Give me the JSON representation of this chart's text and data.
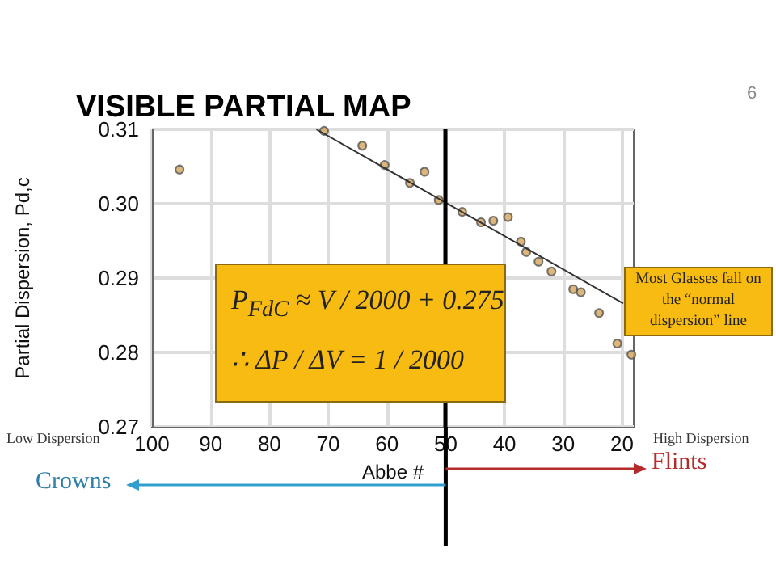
{
  "chart_data": {
    "type": "scatter",
    "title": "VISIBLE PARTIAL MAP",
    "xlabel": "Abbe #",
    "ylabel": "Partial Dispersion, Pd,c",
    "xlim": [
      100,
      18
    ],
    "xticks": [
      100,
      90,
      80,
      70,
      60,
      50,
      40,
      30,
      20
    ],
    "ylim": [
      0.27,
      0.31
    ],
    "yticks": [
      {
        "value": 0.27,
        "label": "0.27"
      },
      {
        "value": 0.28,
        "label": "0.28"
      },
      {
        "value": 0.29,
        "label": "0.29"
      },
      {
        "value": 0.3,
        "label": "0.30"
      },
      {
        "value": 0.31,
        "label": "0.31"
      }
    ],
    "grid": true,
    "series": [
      {
        "type": "scatter",
        "marker": "circle",
        "color": "#d4a45a",
        "x": [
          95.3,
          70.7,
          64.2,
          60.4,
          56.1,
          53.6,
          51.2,
          47.2,
          44.0,
          41.9,
          39.4,
          37.2,
          36.3,
          34.2,
          32.0,
          28.3,
          27.0,
          23.9,
          20.8,
          18.4
        ],
        "values": [
          0.3046,
          0.3098,
          0.3078,
          0.3052,
          0.3028,
          0.3043,
          0.3005,
          0.2989,
          0.2975,
          0.2977,
          0.2982,
          0.2949,
          0.2935,
          0.2922,
          0.2909,
          0.2885,
          0.2881,
          0.2853,
          0.2812,
          0.2797
        ]
      },
      {
        "type": "line",
        "color": "#333333",
        "x": [
          72.0,
          19.8
        ],
        "values": [
          0.31,
          0.2866
        ]
      }
    ],
    "ref_lines": [
      {
        "axis": "x",
        "value": 50,
        "color": "#000000"
      }
    ],
    "annotations": [
      "6",
      "Most Glasses fall on the “normal dispersion” line",
      "P$_{FdC}$ ≈ V / 2000 + 0.275",
      "∴ ΔP / ΔV = 1 / 2000",
      "Low Dispersion",
      "High Dispersion",
      "Crowns",
      "Flints"
    ]
  }
}
